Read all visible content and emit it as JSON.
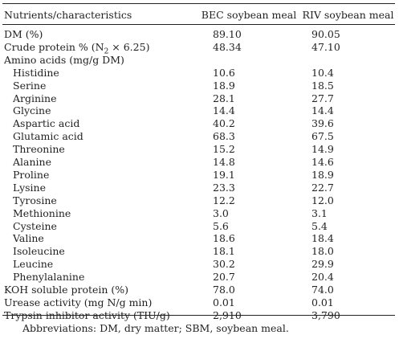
{
  "table": {
    "header": {
      "label": "Nutrients/characteristics",
      "col_bec": "BEC soybean meal",
      "col_riv": "RIV soybean meal"
    },
    "rows": [
      {
        "label": "DM (%)",
        "bec": "89.10",
        "riv": "90.05",
        "indent": false
      },
      {
        "label": "Crude protein % (N",
        "label_sub": "2",
        "label_tail": " × 6.25)",
        "bec": "48.34",
        "riv": "47.10",
        "indent": false
      },
      {
        "label": "Amino acids (mg/g DM)",
        "bec": "",
        "riv": "",
        "indent": false
      },
      {
        "label": "Histidine",
        "bec": "10.6",
        "riv": "10.4",
        "indent": true
      },
      {
        "label": "Serine",
        "bec": "18.9",
        "riv": "18.5",
        "indent": true
      },
      {
        "label": "Arginine",
        "bec": "28.1",
        "riv": "27.7",
        "indent": true
      },
      {
        "label": "Glycine",
        "bec": "14.4",
        "riv": "14.4",
        "indent": true
      },
      {
        "label": "Aspartic acid",
        "bec": "40.2",
        "riv": "39.6",
        "indent": true
      },
      {
        "label": "Glutamic acid",
        "bec": "68.3",
        "riv": "67.5",
        "indent": true
      },
      {
        "label": "Threonine",
        "bec": "15.2",
        "riv": "14.9",
        "indent": true
      },
      {
        "label": "Alanine",
        "bec": "14.8",
        "riv": "14.6",
        "indent": true
      },
      {
        "label": "Proline",
        "bec": "19.1",
        "riv": "18.9",
        "indent": true
      },
      {
        "label": "Lysine",
        "bec": "23.3",
        "riv": "22.7",
        "indent": true
      },
      {
        "label": "Tyrosine",
        "bec": "12.2",
        "riv": "12.0",
        "indent": true
      },
      {
        "label": "Methionine",
        "bec": "3.0",
        "riv": "3.1",
        "indent": true
      },
      {
        "label": "Cysteine",
        "bec": "5.6",
        "riv": "5.4",
        "indent": true
      },
      {
        "label": "Valine",
        "bec": "18.6",
        "riv": "18.4",
        "indent": true
      },
      {
        "label": "Isoleucine",
        "bec": "18.1",
        "riv": "18.0",
        "indent": true
      },
      {
        "label": "Leucine",
        "bec": "30.2",
        "riv": "29.9",
        "indent": true
      },
      {
        "label": "Phenylalanine",
        "bec": "20.7",
        "riv": "20.4",
        "indent": true
      },
      {
        "label": "KOH soluble protein (%)",
        "bec": "78.0",
        "riv": "74.0",
        "indent": false
      },
      {
        "label": "Urease activity (mg N/g min)",
        "bec": "0.01",
        "riv": "0.01",
        "indent": false
      },
      {
        "label": "Trypsin inhibitor activity (TIU/g)",
        "bec": "2,910",
        "riv": "3,790",
        "indent": false
      }
    ]
  },
  "footnote": "Abbreviations: DM, dry matter; SBM, soybean meal."
}
